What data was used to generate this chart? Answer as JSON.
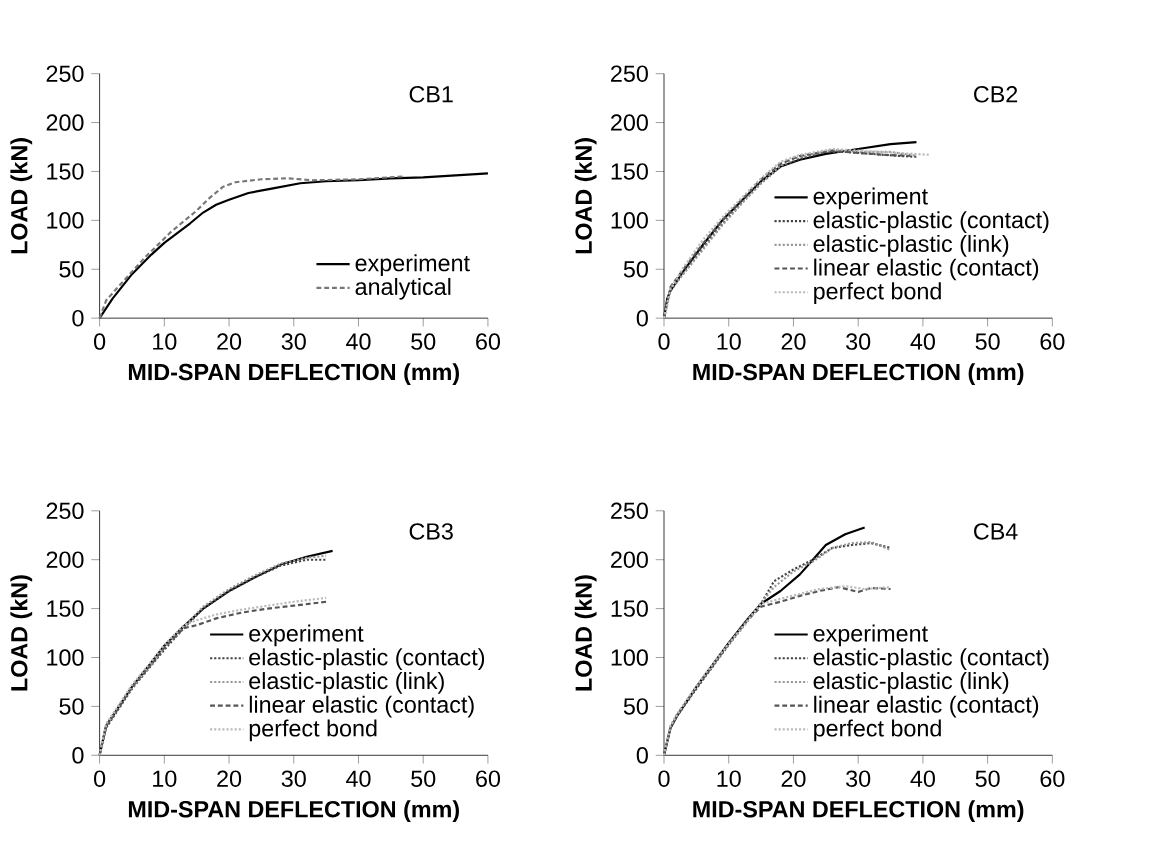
{
  "chart_data": [
    {
      "type": "line",
      "title": "CB1",
      "xlabel": "MID-SPAN DEFLECTION (mm)",
      "ylabel": "LOAD (kN)",
      "xlim": [
        0,
        60
      ],
      "ylim": [
        0,
        250
      ],
      "xticks": [
        0,
        10,
        20,
        30,
        40,
        50,
        60
      ],
      "yticks": [
        0,
        50,
        100,
        150,
        200,
        250
      ],
      "legend": "bottom right",
      "series": [
        {
          "name": "experiment",
          "color": "#000000",
          "line_style": "solid",
          "x": [
            0,
            1,
            2,
            5,
            8,
            10,
            14,
            16,
            18,
            20,
            23,
            27,
            31,
            35,
            40,
            45,
            50,
            55,
            60
          ],
          "values": [
            0,
            10,
            20,
            45,
            65,
            77,
            97,
            108,
            116,
            121,
            128,
            133,
            138,
            140,
            141,
            143,
            144,
            146,
            148
          ]
        },
        {
          "name": "analytical",
          "color": "#777777",
          "line_style": "dashed",
          "x": [
            0,
            1,
            3,
            7,
            11,
            15,
            17,
            19,
            21,
            25,
            29,
            33,
            40,
            47
          ],
          "values": [
            0,
            18,
            33,
            62,
            88,
            110,
            123,
            134,
            139,
            142,
            143,
            141,
            142,
            145
          ]
        }
      ]
    },
    {
      "type": "line",
      "title": "CB2",
      "xlabel": "MID-SPAN DEFLECTION (mm)",
      "ylabel": "LOAD (kN)",
      "xlim": [
        0,
        60
      ],
      "ylim": [
        0,
        250
      ],
      "xticks": [
        0,
        10,
        20,
        30,
        40,
        50,
        60
      ],
      "yticks": [
        0,
        50,
        100,
        150,
        200,
        250
      ],
      "legend": "right",
      "series": [
        {
          "name": "experiment",
          "color": "#000000",
          "line_style": "solid",
          "x": [
            0,
            0.5,
            1,
            3,
            6,
            9,
            12,
            15,
            18,
            21,
            25,
            30,
            35,
            39
          ],
          "values": [
            0,
            20,
            28,
            48,
            75,
            100,
            120,
            140,
            155,
            162,
            168,
            173,
            178,
            180
          ]
        },
        {
          "name": "elastic-plastic (contact)",
          "color": "#444444",
          "line_style": "dotted",
          "x": [
            0,
            1,
            3,
            6,
            9,
            12,
            15,
            18,
            21,
            25,
            28,
            32,
            36,
            39
          ],
          "values": [
            0,
            28,
            46,
            72,
            96,
            118,
            138,
            155,
            163,
            170,
            170,
            168,
            166,
            165
          ]
        },
        {
          "name": "elastic-plastic (link)",
          "color": "#999999",
          "line_style": "dotted",
          "x": [
            0,
            1,
            3,
            6,
            9,
            12,
            15,
            18,
            21,
            26,
            30,
            35,
            39
          ],
          "values": [
            0,
            30,
            45,
            70,
            95,
            117,
            138,
            156,
            165,
            172,
            170,
            170,
            166
          ]
        },
        {
          "name": "linear elastic (contact)",
          "color": "#555555",
          "line_style": "dashed",
          "x": [
            0,
            1,
            3,
            6,
            9,
            12,
            15,
            18,
            21,
            26,
            30,
            34,
            38
          ],
          "values": [
            0,
            32,
            50,
            76,
            100,
            121,
            142,
            158,
            166,
            171,
            169,
            167,
            166
          ]
        },
        {
          "name": "perfect bond",
          "color": "#bbbbbb",
          "line_style": "dotted",
          "x": [
            0,
            1,
            3,
            6,
            9,
            12,
            15,
            18,
            21,
            26,
            31,
            36,
            41
          ],
          "values": [
            0,
            30,
            52,
            80,
            103,
            123,
            143,
            160,
            167,
            173,
            171,
            169,
            167
          ]
        }
      ]
    },
    {
      "type": "line",
      "title": "CB3",
      "xlabel": "MID-SPAN DEFLECTION (mm)",
      "ylabel": "LOAD (kN)",
      "xlim": [
        0,
        60
      ],
      "ylim": [
        0,
        250
      ],
      "xticks": [
        0,
        10,
        20,
        30,
        40,
        50,
        60
      ],
      "yticks": [
        0,
        50,
        100,
        150,
        200,
        250
      ],
      "legend": "right",
      "series": [
        {
          "name": "experiment",
          "color": "#000000",
          "line_style": "solid",
          "x": [
            0,
            1,
            3,
            5,
            8,
            10,
            13,
            16,
            20,
            24,
            28,
            32,
            36
          ],
          "values": [
            0,
            30,
            50,
            70,
            95,
            112,
            132,
            150,
            168,
            182,
            195,
            203,
            209
          ]
        },
        {
          "name": "elastic-plastic (contact)",
          "color": "#444444",
          "line_style": "dotted",
          "x": [
            0,
            1,
            3,
            5,
            8,
            10,
            13,
            16,
            20,
            24,
            28,
            32,
            35
          ],
          "values": [
            0,
            28,
            48,
            68,
            92,
            108,
            130,
            150,
            168,
            182,
            194,
            200,
            200
          ]
        },
        {
          "name": "elastic-plastic (link)",
          "color": "#999999",
          "line_style": "dotted",
          "x": [
            0,
            1,
            3,
            5,
            8,
            10,
            13,
            16,
            20,
            24,
            28,
            32,
            35
          ],
          "values": [
            0,
            30,
            50,
            69,
            93,
            110,
            131,
            152,
            170,
            184,
            196,
            202,
            204
          ]
        },
        {
          "name": "linear elastic (contact)",
          "color": "#555555",
          "line_style": "dashed",
          "x": [
            0,
            1,
            3,
            5,
            8,
            10,
            13,
            15,
            18,
            22,
            26,
            30,
            35
          ],
          "values": [
            0,
            30,
            49,
            70,
            93,
            110,
            130,
            133,
            140,
            146,
            150,
            153,
            157
          ]
        },
        {
          "name": "perfect bond",
          "color": "#bbbbbb",
          "line_style": "dotted",
          "x": [
            0,
            1,
            3,
            5,
            8,
            10,
            13,
            15,
            18,
            22,
            26,
            30,
            35
          ],
          "values": [
            0,
            32,
            52,
            72,
            96,
            113,
            133,
            138,
            144,
            149,
            153,
            157,
            161
          ]
        }
      ]
    },
    {
      "type": "line",
      "title": "CB4",
      "xlabel": "MID-SPAN DEFLECTION (mm)",
      "ylabel": "LOAD (kN)",
      "xlim": [
        0,
        60
      ],
      "ylim": [
        0,
        250
      ],
      "xticks": [
        0,
        10,
        20,
        30,
        40,
        50,
        60
      ],
      "yticks": [
        0,
        50,
        100,
        150,
        200,
        250
      ],
      "legend": "right",
      "series": [
        {
          "name": "experiment",
          "color": "#000000",
          "line_style": "solid",
          "x": [
            0,
            1,
            2,
            5,
            8,
            10,
            13,
            15,
            18,
            21,
            23,
            25,
            28,
            31
          ],
          "values": [
            0,
            28,
            40,
            70,
            97,
            115,
            140,
            155,
            168,
            185,
            200,
            215,
            226,
            233
          ]
        },
        {
          "name": "elastic-plastic (contact)",
          "color": "#444444",
          "line_style": "dotted",
          "x": [
            0,
            1,
            2,
            5,
            8,
            10,
            13,
            15,
            17,
            20,
            23,
            26,
            29,
            32,
            35
          ],
          "values": [
            0,
            28,
            40,
            68,
            95,
            113,
            138,
            155,
            178,
            190,
            200,
            212,
            215,
            217,
            212
          ]
        },
        {
          "name": "elastic-plastic (link)",
          "color": "#999999",
          "line_style": "dotted",
          "x": [
            0,
            1,
            2,
            5,
            8,
            10,
            13,
            15,
            17,
            20,
            23,
            26,
            29,
            32,
            35
          ],
          "values": [
            0,
            30,
            42,
            70,
            96,
            114,
            139,
            156,
            172,
            188,
            198,
            212,
            217,
            218,
            210
          ]
        },
        {
          "name": "linear elastic (contact)",
          "color": "#555555",
          "line_style": "dashed",
          "x": [
            0,
            1,
            2,
            5,
            8,
            10,
            13,
            15,
            18,
            21,
            24,
            27,
            30,
            32,
            35
          ],
          "values": [
            0,
            28,
            41,
            69,
            96,
            114,
            139,
            152,
            157,
            163,
            168,
            172,
            167,
            171,
            170
          ]
        },
        {
          "name": "perfect bond",
          "color": "#bbbbbb",
          "line_style": "dotted",
          "x": [
            0,
            1,
            3,
            6,
            9,
            12,
            15,
            18,
            21,
            24,
            28,
            31,
            35
          ],
          "values": [
            0,
            30,
            52,
            80,
            106,
            130,
            155,
            160,
            165,
            170,
            173,
            170,
            172
          ]
        }
      ]
    }
  ]
}
